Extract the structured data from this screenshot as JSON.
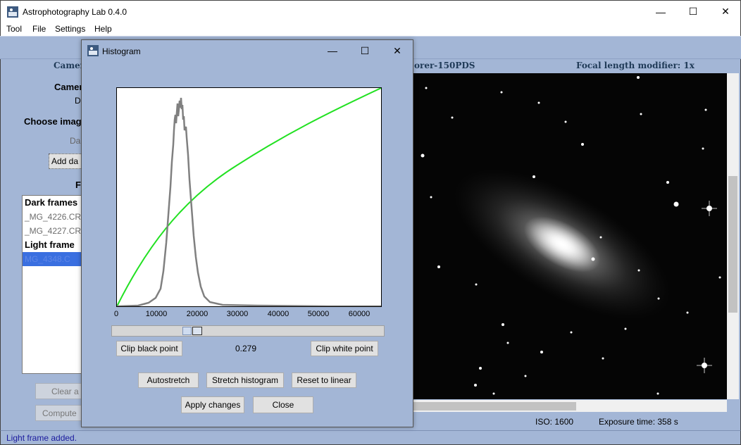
{
  "window": {
    "title": "Astrophotography Lab 0.4.0",
    "minimize": "—",
    "maximize": "☐",
    "close": "✕"
  },
  "menu": [
    "Tool",
    "File",
    "Settings",
    "Help"
  ],
  "info_bar": {
    "camera_partial": "Camer",
    "telescope_partial": "orer-150PDS",
    "focal_length_modifier": "Focal length modifier: 1x"
  },
  "left_panel": {
    "camera_label_partial": "Camer",
    "camera_value_partial": "D",
    "choose_image_partial": "Choose imag",
    "dark_label_partial": "Da",
    "add_dark_button_partial": "Add da",
    "files_label_partial": "Fi",
    "clear_button_partial": "Clear a",
    "compute_button_partial": "Compute"
  },
  "file_list": {
    "dark_header": "Dark frames",
    "dark_files": [
      "_MG_4226.CR",
      "_MG_4227.CR"
    ],
    "light_header": "Light frame",
    "light_files": [
      "MG_4348.C"
    ]
  },
  "image_footer": {
    "iso": "ISO: 1600",
    "exposure": "Exposure time: 358 s"
  },
  "status": "Light frame added.",
  "histogram_dialog": {
    "title": "Histogram",
    "minimize": "—",
    "maximize": "☐",
    "close": "✕",
    "x_ticks": [
      "0",
      "10000",
      "20000",
      "30000",
      "40000",
      "50000",
      "60000"
    ],
    "clip_black_label": "Clip black point",
    "clip_white_label": "Clip white point",
    "stretch_value": "0.279",
    "autostretch_label": "Autostretch",
    "stretch_histogram_label": "Stretch histogram",
    "reset_linear_label": "Reset to linear",
    "apply_label": "Apply changes",
    "close_label": "Close",
    "colors": {
      "curve": "#22e122",
      "histogram": "#808080"
    }
  }
}
